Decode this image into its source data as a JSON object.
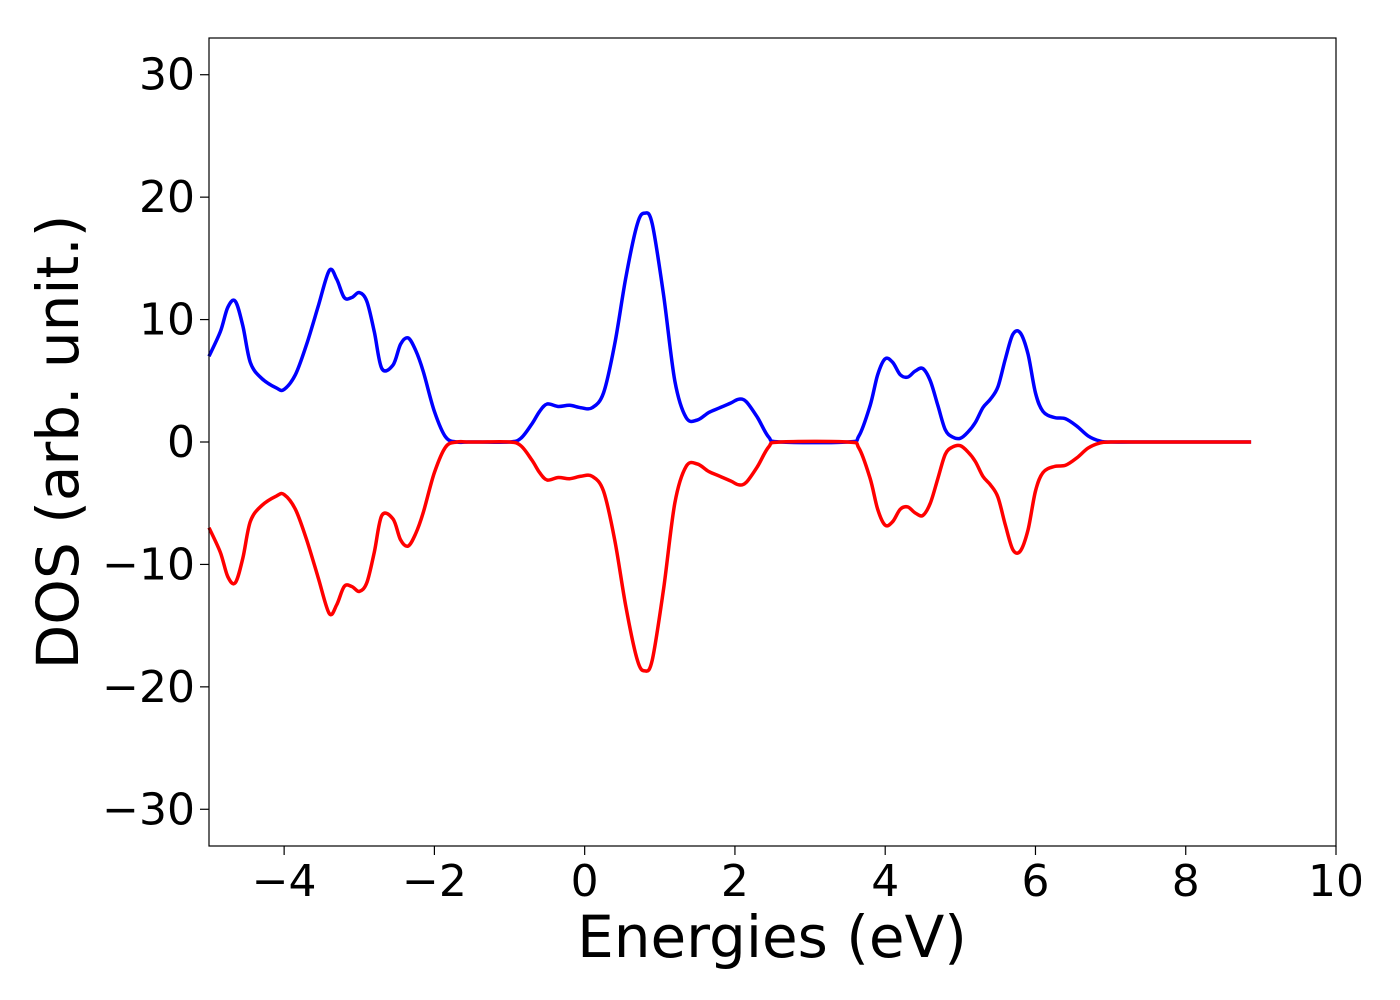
{
  "chart_data": {
    "type": "line",
    "title": "",
    "xlabel": "Energies (eV)",
    "ylabel": "DOS (arb. unit.)",
    "xlim": [
      -5,
      10
    ],
    "ylim": [
      -33,
      33
    ],
    "grid": false,
    "x_ticks": [
      -4,
      -2,
      0,
      2,
      4,
      6,
      8,
      10
    ],
    "x_tick_labels": [
      "−4",
      "−2",
      "0",
      "2",
      "4",
      "6",
      "8",
      "10"
    ],
    "y_ticks": [
      -30,
      -20,
      -10,
      0,
      10,
      20,
      30
    ],
    "y_tick_labels": [
      "−30",
      "−20",
      "−10",
      "0",
      "10",
      "20",
      "30"
    ],
    "series": [
      {
        "color": "#0000ff",
        "x": [
          -5.0,
          -4.85,
          -4.75,
          -4.65,
          -4.55,
          -4.45,
          -4.3,
          -4.1,
          -4.0,
          -3.85,
          -3.7,
          -3.55,
          -3.4,
          -3.3,
          -3.2,
          -3.1,
          -3.0,
          -2.9,
          -2.8,
          -2.7,
          -2.55,
          -2.45,
          -2.35,
          -2.25,
          -2.15,
          -2.0,
          -1.85,
          -1.7,
          -1.55,
          -1.4,
          -1.0,
          -0.85,
          -0.7,
          -0.6,
          -0.5,
          -0.35,
          -0.2,
          -0.05,
          0.1,
          0.25,
          0.4,
          0.55,
          0.7,
          0.8,
          0.9,
          1.05,
          1.2,
          1.35,
          1.5,
          1.65,
          1.8,
          1.95,
          2.05,
          2.15,
          2.3,
          2.45,
          2.6,
          3.5,
          3.65,
          3.8,
          3.9,
          4.0,
          4.1,
          4.2,
          4.3,
          4.4,
          4.5,
          4.6,
          4.7,
          4.8,
          4.9,
          5.0,
          5.1,
          5.2,
          5.3,
          5.4,
          5.5,
          5.6,
          5.7,
          5.8,
          5.9,
          6.0,
          6.1,
          6.25,
          6.4,
          6.55,
          6.7,
          6.85,
          7.0,
          7.5,
          8.0,
          8.5,
          8.87
        ],
        "values": [
          7.0,
          9.0,
          11.0,
          11.5,
          9.5,
          6.5,
          5.2,
          4.4,
          4.3,
          5.5,
          8.0,
          11.0,
          14.0,
          13.3,
          11.8,
          11.8,
          12.2,
          11.5,
          9.0,
          6.0,
          6.3,
          8.0,
          8.5,
          7.5,
          5.8,
          2.5,
          0.4,
          0.0,
          0.0,
          0.0,
          0.0,
          0.3,
          1.5,
          2.5,
          3.1,
          2.9,
          3.0,
          2.8,
          2.8,
          4.0,
          8.0,
          13.5,
          17.8,
          18.7,
          17.8,
          12.0,
          5.0,
          2.0,
          1.8,
          2.4,
          2.8,
          3.2,
          3.5,
          3.3,
          2.0,
          0.4,
          0.0,
          0.0,
          0.5,
          3.0,
          5.5,
          6.8,
          6.5,
          5.5,
          5.3,
          5.8,
          6.0,
          5.0,
          3.0,
          1.0,
          0.4,
          0.3,
          0.8,
          1.6,
          2.8,
          3.5,
          4.5,
          6.8,
          8.8,
          8.9,
          7.2,
          4.0,
          2.5,
          2.0,
          1.9,
          1.3,
          0.5,
          0.1,
          0.0,
          0.0,
          0.0,
          0.0,
          0.0
        ]
      },
      {
        "color": "#ff0000",
        "x": [
          -5.0,
          -4.85,
          -4.75,
          -4.65,
          -4.55,
          -4.45,
          -4.3,
          -4.1,
          -4.0,
          -3.85,
          -3.7,
          -3.55,
          -3.4,
          -3.3,
          -3.2,
          -3.1,
          -3.0,
          -2.9,
          -2.8,
          -2.7,
          -2.55,
          -2.45,
          -2.35,
          -2.25,
          -2.15,
          -2.0,
          -1.85,
          -1.7,
          -1.55,
          -1.4,
          -1.0,
          -0.85,
          -0.7,
          -0.6,
          -0.5,
          -0.35,
          -0.2,
          -0.05,
          0.1,
          0.25,
          0.4,
          0.55,
          0.7,
          0.8,
          0.9,
          1.05,
          1.2,
          1.35,
          1.5,
          1.65,
          1.8,
          1.95,
          2.05,
          2.15,
          2.3,
          2.45,
          2.6,
          3.5,
          3.65,
          3.8,
          3.9,
          4.0,
          4.1,
          4.2,
          4.3,
          4.4,
          4.5,
          4.6,
          4.7,
          4.8,
          4.9,
          5.0,
          5.1,
          5.2,
          5.3,
          5.4,
          5.5,
          5.6,
          5.7,
          5.8,
          5.9,
          6.0,
          6.1,
          6.25,
          6.4,
          6.55,
          6.7,
          6.85,
          7.0,
          7.5,
          8.0,
          8.5,
          8.87
        ],
        "values": [
          -7.0,
          -9.0,
          -11.0,
          -11.5,
          -9.5,
          -6.5,
          -5.2,
          -4.4,
          -4.3,
          -5.5,
          -8.0,
          -11.0,
          -14.0,
          -13.3,
          -11.8,
          -11.8,
          -12.2,
          -11.5,
          -9.0,
          -6.0,
          -6.3,
          -8.0,
          -8.5,
          -7.5,
          -5.8,
          -2.5,
          -0.4,
          0.0,
          0.0,
          0.0,
          0.0,
          -0.3,
          -1.5,
          -2.5,
          -3.1,
          -2.9,
          -3.0,
          -2.8,
          -2.8,
          -4.0,
          -8.0,
          -13.5,
          -17.8,
          -18.7,
          -17.8,
          -12.0,
          -5.0,
          -2.0,
          -1.8,
          -2.4,
          -2.8,
          -3.2,
          -3.5,
          -3.3,
          -2.0,
          -0.4,
          0.0,
          0.0,
          -0.5,
          -3.0,
          -5.5,
          -6.8,
          -6.5,
          -5.5,
          -5.3,
          -5.8,
          -6.0,
          -5.0,
          -3.0,
          -1.0,
          -0.4,
          -0.3,
          -0.8,
          -1.6,
          -2.8,
          -3.5,
          -4.5,
          -6.8,
          -8.8,
          -8.9,
          -7.2,
          -4.0,
          -2.5,
          -2.0,
          -1.9,
          -1.3,
          -0.5,
          -0.1,
          0.0,
          0.0,
          0.0,
          0.0,
          0.0
        ]
      }
    ]
  }
}
